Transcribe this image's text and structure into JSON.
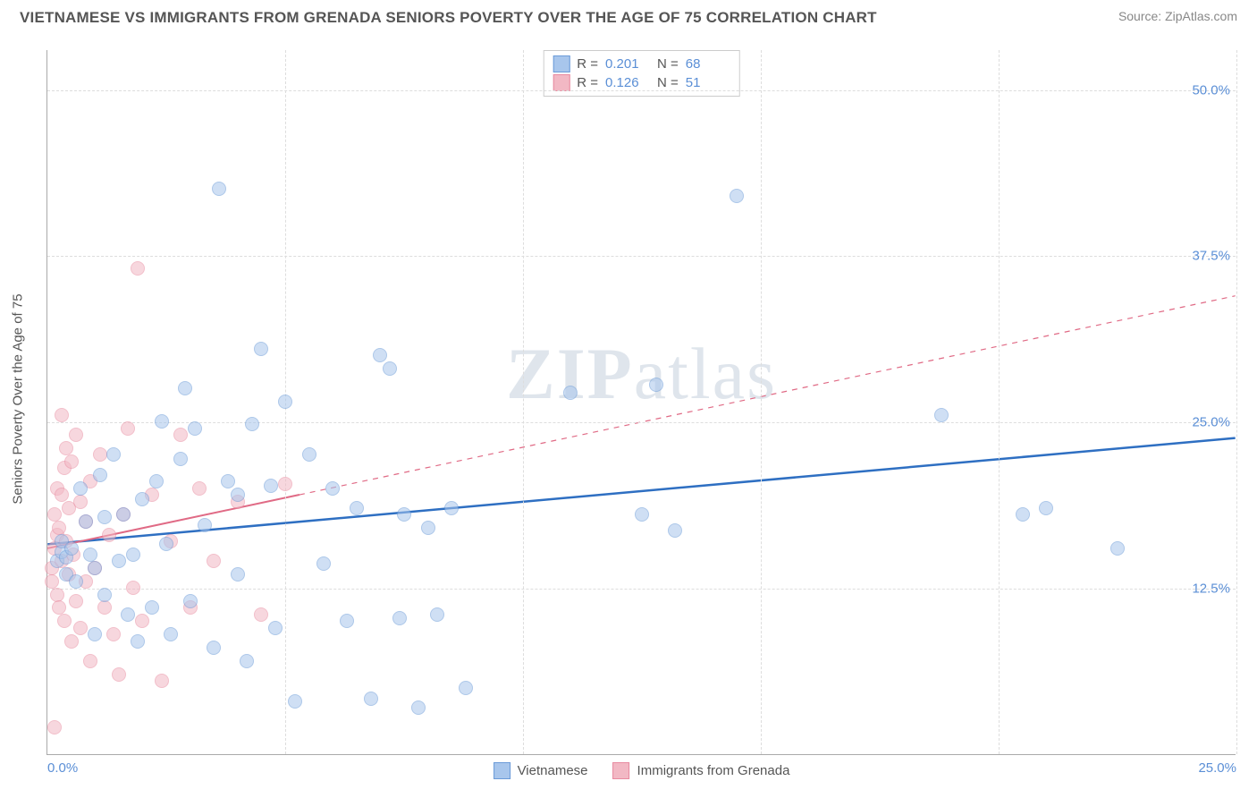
{
  "header": {
    "title": "VIETNAMESE VS IMMIGRANTS FROM GRENADA SENIORS POVERTY OVER THE AGE OF 75 CORRELATION CHART",
    "source_label": "Source: ",
    "source_name": "ZipAtlas.com"
  },
  "watermark": {
    "part1": "ZIP",
    "part2": "atlas"
  },
  "chart": {
    "type": "scatter",
    "y_axis_label": "Seniors Poverty Over the Age of 75",
    "x_domain": [
      0,
      25
    ],
    "y_domain": [
      0,
      53
    ],
    "grid_color": "#dddddd",
    "axis_color": "#aaaaaa",
    "tick_color": "#5b8fd6",
    "y_gridlines": [
      12.5,
      25.0,
      37.5,
      50.0
    ],
    "y_tick_labels": [
      "12.5%",
      "25.0%",
      "37.5%",
      "50.0%"
    ],
    "x_gridlines": [
      5,
      10,
      15,
      20,
      25
    ],
    "x_min_label": "0.0%",
    "x_max_label": "25.0%",
    "marker_radius": 8,
    "marker_opacity": 0.55,
    "series": [
      {
        "name": "Vietnamese",
        "color_fill": "#a8c6ec",
        "color_stroke": "#6b9bd8",
        "trend_color": "#2e6fc2",
        "trend_width": 2.5,
        "trend_solid_to_x": 25,
        "trend": {
          "x1": 0,
          "y1": 15.8,
          "x2": 25,
          "y2": 23.8
        },
        "r_value": "0.201",
        "n_value": "68",
        "points": [
          [
            0.2,
            14.5
          ],
          [
            0.3,
            15.2
          ],
          [
            0.3,
            16.0
          ],
          [
            0.4,
            13.5
          ],
          [
            0.4,
            14.8
          ],
          [
            0.5,
            15.5
          ],
          [
            0.6,
            13.0
          ],
          [
            0.7,
            20.0
          ],
          [
            0.8,
            17.5
          ],
          [
            0.9,
            15.0
          ],
          [
            1.0,
            14.0
          ],
          [
            1.1,
            21.0
          ],
          [
            1.2,
            17.8
          ],
          [
            1.2,
            12.0
          ],
          [
            1.4,
            22.5
          ],
          [
            1.5,
            14.5
          ],
          [
            1.6,
            18.0
          ],
          [
            1.7,
            10.5
          ],
          [
            1.8,
            15.0
          ],
          [
            1.9,
            8.5
          ],
          [
            2.0,
            19.2
          ],
          [
            2.2,
            11.0
          ],
          [
            2.3,
            20.5
          ],
          [
            2.4,
            25.0
          ],
          [
            2.5,
            15.8
          ],
          [
            2.6,
            9.0
          ],
          [
            2.8,
            22.2
          ],
          [
            2.9,
            27.5
          ],
          [
            3.0,
            11.5
          ],
          [
            3.1,
            24.5
          ],
          [
            3.3,
            17.2
          ],
          [
            3.5,
            8.0
          ],
          [
            3.6,
            42.5
          ],
          [
            3.8,
            20.5
          ],
          [
            4.0,
            19.5
          ],
          [
            4.0,
            13.5
          ],
          [
            4.2,
            7.0
          ],
          [
            4.3,
            24.8
          ],
          [
            4.5,
            30.5
          ],
          [
            4.7,
            20.2
          ],
          [
            4.8,
            9.5
          ],
          [
            5.0,
            26.5
          ],
          [
            5.2,
            4.0
          ],
          [
            5.5,
            22.5
          ],
          [
            5.8,
            14.3
          ],
          [
            6.0,
            20.0
          ],
          [
            6.3,
            10.0
          ],
          [
            6.5,
            18.5
          ],
          [
            6.8,
            4.2
          ],
          [
            7.0,
            30.0
          ],
          [
            7.2,
            29.0
          ],
          [
            7.4,
            10.2
          ],
          [
            7.5,
            18.0
          ],
          [
            7.8,
            3.5
          ],
          [
            8.0,
            17.0
          ],
          [
            8.2,
            10.5
          ],
          [
            8.5,
            18.5
          ],
          [
            8.8,
            5.0
          ],
          [
            11.0,
            27.2
          ],
          [
            12.5,
            18.0
          ],
          [
            12.8,
            27.8
          ],
          [
            13.2,
            16.8
          ],
          [
            14.5,
            42.0
          ],
          [
            18.8,
            25.5
          ],
          [
            21.0,
            18.5
          ],
          [
            22.5,
            15.5
          ],
          [
            20.5,
            18.0
          ],
          [
            1.0,
            9.0
          ]
        ]
      },
      {
        "name": "Immigrants from Grenada",
        "color_fill": "#f2b8c4",
        "color_stroke": "#e88ba0",
        "trend_color": "#e06a85",
        "trend_width": 2,
        "trend_solid_to_x": 5.3,
        "trend": {
          "x1": 0,
          "y1": 15.5,
          "x2": 25,
          "y2": 34.5
        },
        "r_value": "0.126",
        "n_value": "51",
        "points": [
          [
            0.1,
            13.0
          ],
          [
            0.1,
            14.0
          ],
          [
            0.15,
            15.5
          ],
          [
            0.15,
            18.0
          ],
          [
            0.2,
            12.0
          ],
          [
            0.2,
            16.5
          ],
          [
            0.2,
            20.0
          ],
          [
            0.25,
            11.0
          ],
          [
            0.25,
            17.0
          ],
          [
            0.3,
            14.5
          ],
          [
            0.3,
            25.5
          ],
          [
            0.3,
            19.5
          ],
          [
            0.35,
            10.0
          ],
          [
            0.35,
            21.5
          ],
          [
            0.4,
            16.0
          ],
          [
            0.4,
            23.0
          ],
          [
            0.45,
            13.5
          ],
          [
            0.45,
            18.5
          ],
          [
            0.5,
            8.5
          ],
          [
            0.5,
            22.0
          ],
          [
            0.55,
            15.0
          ],
          [
            0.6,
            11.5
          ],
          [
            0.6,
            24.0
          ],
          [
            0.7,
            19.0
          ],
          [
            0.7,
            9.5
          ],
          [
            0.8,
            17.5
          ],
          [
            0.8,
            13.0
          ],
          [
            0.9,
            20.5
          ],
          [
            0.9,
            7.0
          ],
          [
            1.0,
            14.0
          ],
          [
            1.1,
            22.5
          ],
          [
            1.2,
            11.0
          ],
          [
            1.3,
            16.5
          ],
          [
            1.4,
            9.0
          ],
          [
            1.5,
            6.0
          ],
          [
            1.6,
            18.0
          ],
          [
            1.7,
            24.5
          ],
          [
            1.8,
            12.5
          ],
          [
            1.9,
            36.5
          ],
          [
            2.0,
            10.0
          ],
          [
            2.2,
            19.5
          ],
          [
            2.4,
            5.5
          ],
          [
            2.6,
            16.0
          ],
          [
            2.8,
            24.0
          ],
          [
            3.0,
            11.0
          ],
          [
            3.2,
            20.0
          ],
          [
            3.5,
            14.5
          ],
          [
            4.0,
            19.0
          ],
          [
            4.5,
            10.5
          ],
          [
            5.0,
            20.3
          ],
          [
            0.15,
            2.0
          ]
        ]
      }
    ],
    "legend_top": {
      "r_label": "R =",
      "n_label": "N ="
    },
    "legend_bottom_labels": [
      "Vietnamese",
      "Immigrants from Grenada"
    ]
  }
}
